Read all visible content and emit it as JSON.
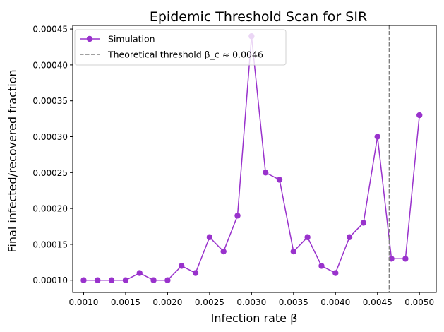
{
  "chart_data": {
    "type": "line",
    "title": "Epidemic Threshold Scan for SIR",
    "xlabel": "Infection rate β",
    "ylabel": "Final infected/recovered fraction",
    "xlim": [
      0.00087,
      0.0052
    ],
    "ylim": [
      8.3e-05,
      0.000455
    ],
    "xticks": [
      "0.0010",
      "0.0015",
      "0.0020",
      "0.0025",
      "0.0030",
      "0.0035",
      "0.0040",
      "0.0045",
      "0.0050"
    ],
    "yticks": [
      "0.00010",
      "0.00015",
      "0.00020",
      "0.00025",
      "0.00030",
      "0.00035",
      "0.00040",
      "0.00045"
    ],
    "grid": false,
    "legend_position": "top-left",
    "series": [
      {
        "name": "Simulation",
        "color": "#9932CC",
        "marker": "circle",
        "x": [
          0.001,
          0.0011667,
          0.0013333,
          0.0015,
          0.0016667,
          0.0018333,
          0.002,
          0.0021667,
          0.0023333,
          0.0025,
          0.0026667,
          0.0028333,
          0.003,
          0.0031667,
          0.0033333,
          0.0035,
          0.0036667,
          0.0038333,
          0.004,
          0.0041667,
          0.0043333,
          0.0045,
          0.0046667,
          0.0048333,
          0.005
        ],
        "y": [
          0.0001,
          0.0001,
          0.0001,
          0.0001,
          0.00011,
          0.0001,
          0.0001,
          0.00012,
          0.00011,
          0.00016,
          0.00014,
          0.00019,
          0.00044,
          0.00025,
          0.00024,
          0.00014,
          0.00016,
          0.00012,
          0.00011,
          0.00016,
          0.00018,
          0.0003,
          0.00013,
          0.00013,
          0.00033
        ]
      }
    ],
    "threshold": {
      "label": "Theoretical threshold β_c ≈ 0.0046",
      "x": 0.00464,
      "color": "#808080",
      "style": "dashed"
    }
  }
}
